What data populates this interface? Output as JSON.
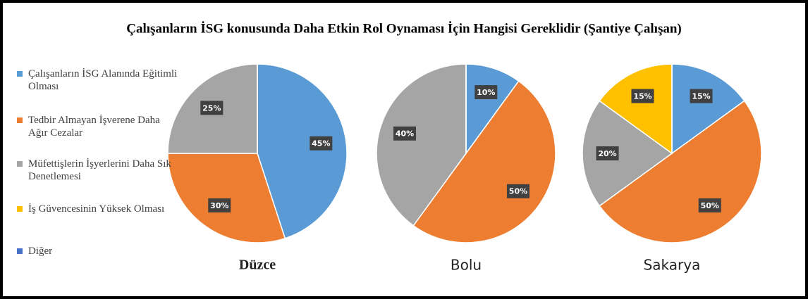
{
  "title": "Çalışanların İSG konusunda Daha Etkin Rol Oynaması İçin Hangisi Gereklidir (Şantiye Çalışan)",
  "legend": {
    "categories": [
      "Çalışanların İSG Alanında Eğitimli Olması",
      "Tedbir Almayan İşverene Daha Ağır Cezalar",
      "Müfettişlerin İşyerlerini Daha Sık Denetlemesi",
      "İş Güvencesinin Yüksek Olması",
      "Diğer"
    ],
    "colors": [
      "#5b9bd5",
      "#ed7d31",
      "#a5a5a5",
      "#ffc000",
      "#4472c4"
    ]
  },
  "chart_data": [
    {
      "type": "pie",
      "title": "Düzce",
      "values": [
        45,
        30,
        25,
        0,
        0
      ],
      "value_labels": [
        "45%",
        "30%",
        "25%",
        null,
        null
      ]
    },
    {
      "type": "pie",
      "title": "Bolu",
      "values": [
        10,
        50,
        40,
        0,
        0
      ],
      "value_labels": [
        "10%",
        "50%",
        "40%",
        null,
        null
      ]
    },
    {
      "type": "pie",
      "title": "Sakarya",
      "values": [
        15,
        50,
        20,
        15,
        0
      ],
      "value_labels": [
        "15%",
        "50%",
        "20%",
        "15%",
        null
      ]
    }
  ]
}
